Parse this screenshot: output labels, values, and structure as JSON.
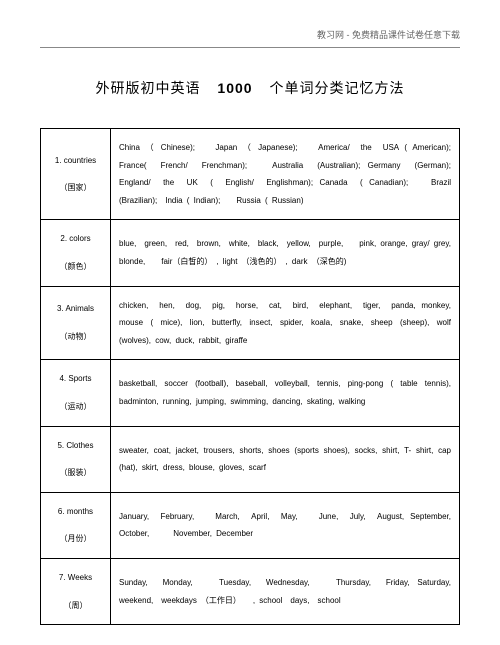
{
  "header": "教习网 - 免费精品课件试卷任意下载",
  "title_prefix": "外研版初中英语",
  "title_number": "1000",
  "title_suffix": "个单词分类记忆方法",
  "rows": [
    {
      "num": "1.",
      "en": "countries",
      "zh": "（国家）",
      "content": "China （ Chinese);　　Japan （ Japanese);　　America/　the　USA ( American);　　France(　French/　Frenchman);　　Australia　(Australian); Germany　(German);　　England/　the　UK　(　English/　Englishman); Canada　( Canadian);　　Brazil (Brazilian);　India ( Indian);　　Russia ( Russian)"
    },
    {
      "num": "2.",
      "en": "colors",
      "zh": "（颜色）",
      "content": "blue,　green,　red,　brown,　white,　black,　yellow,　purple,　　pink, orange, gray/ grey,　　　blonde,　　fair（白皙的）　, light　（浅色的）　, dark （深色的)"
    },
    {
      "num": "3.",
      "en": "Animals",
      "zh": "（动物）",
      "content": "chicken,　hen,　dog,　pig,　horse,　cat,　bird,　elephant,　tiger,　panda, monkey, mouse ( mice), lion, butterfly, insect, spider, koala, snake,\nsheep (sheep), wolf (wolves), cow, duck, rabbit, giraffe"
    },
    {
      "num": "4.",
      "en": "Sports",
      "zh": "（运动）",
      "content": "basketball, soccer (football), baseball, volleyball, tennis, ping-pong\n( table tennis), badminton, running, jumping, swimming, dancing,\nskating, walking"
    },
    {
      "num": "5.",
      "en": "Clothes",
      "zh": "（服装）",
      "content": "sweater, coat, jacket, trousers, shorts, shoes (sports shoes), socks,\nshirt, T- shirt, cap (hat), skirt, dress, blouse, gloves, scarf"
    },
    {
      "num": "6.",
      "en": "months",
      "zh": "（月份）",
      "content": "January,　February,　　March,　April,　May,　　June,　July,　August, September, October,　　　November, December"
    },
    {
      "num": "7.",
      "en": "Weeks",
      "zh": "（周）",
      "content": "Sunday,　Monday,　　Tuesday,　Wednesday,　　Thursday,　Friday, Saturday,　　weekend,　weekdays　（工作日）　　, school　days,　school"
    }
  ]
}
